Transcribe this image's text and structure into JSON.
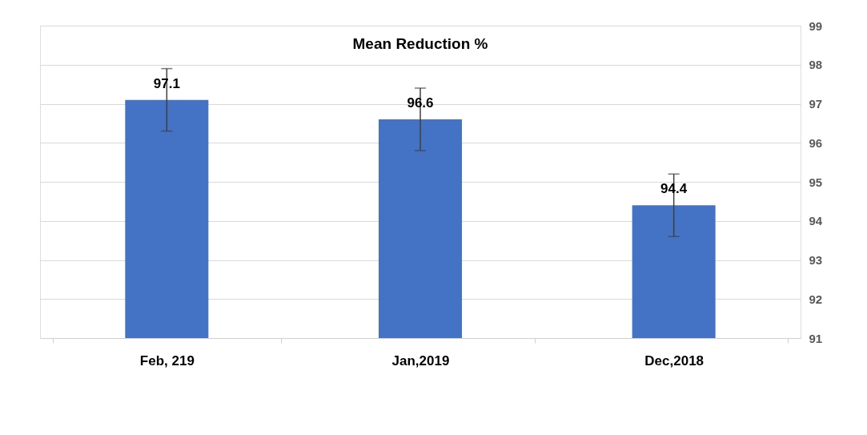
{
  "chart_data": {
    "type": "bar",
    "title": "Mean Reduction %",
    "categories": [
      "Feb, 219",
      "Jan,2019",
      "Dec,2018"
    ],
    "values": [
      97.1,
      96.6,
      94.4
    ],
    "errors": [
      0.8,
      0.8,
      0.8
    ],
    "color": "#4472c4",
    "ylim": [
      91,
      99
    ],
    "yticks": [
      91,
      92,
      93,
      94,
      95,
      96,
      97,
      98,
      99
    ],
    "grid": "y",
    "data_labels": true
  }
}
